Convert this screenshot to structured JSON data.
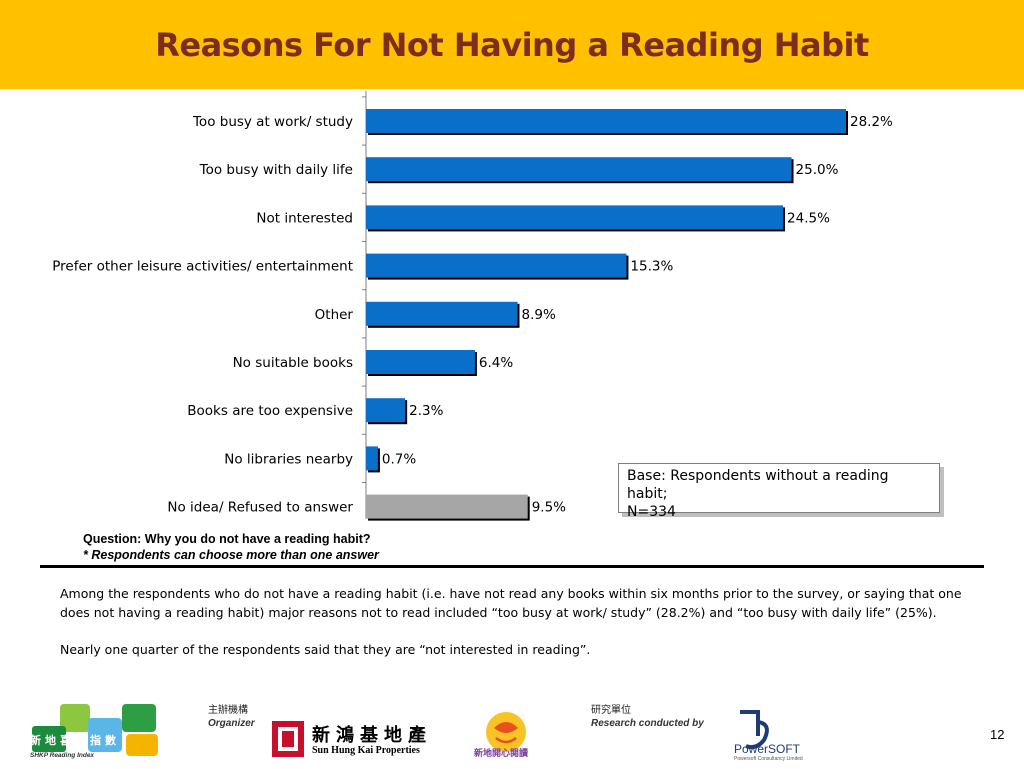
{
  "slide": {
    "title": "Reasons For Not Having a Reading Habit",
    "page_number": "12"
  },
  "chart_data": {
    "type": "bar",
    "orientation": "horizontal",
    "categories": [
      "Too busy at work/ study",
      "Too busy with daily life",
      "Not interested",
      "Prefer other leisure activities/ entertainment",
      "Other",
      "No suitable books",
      "Books are too expensive",
      "No libraries nearby",
      "No idea/ Refused to answer"
    ],
    "values": [
      28.2,
      25.0,
      24.5,
      15.3,
      8.9,
      6.4,
      2.3,
      0.7,
      9.5
    ],
    "value_labels": [
      "28.2%",
      "25.0%",
      "24.5%",
      "15.3%",
      "8.9%",
      "6.4%",
      "2.3%",
      "0.7%",
      "9.5%"
    ],
    "bar_colors": [
      "#0A6FC8",
      "#0A6FC8",
      "#0A6FC8",
      "#0A6FC8",
      "#0A6FC8",
      "#0A6FC8",
      "#0A6FC8",
      "#0A6FC8",
      "#A6A6A6"
    ],
    "unit": "%",
    "xlim": [
      0,
      30
    ],
    "grid": false,
    "legend": "none"
  },
  "base_note": {
    "line1": "Base: Respondents without a reading habit;",
    "line2": "N=334"
  },
  "question": {
    "text": "Question: Why you do not have a reading habit?",
    "note": "* Respondents can choose more than one answer"
  },
  "summary": {
    "paragraph1": "Among the respondents who do not have a reading habit (i.e. have not read any books within six months prior to the survey, or  saying that one does not having a reading habit) major reasons not to read included “too busy at work/ study” (28.2%) and “too busy with daily life” (25%).",
    "paragraph2": "Nearly one quarter of the respondents said that they are “not interested in reading”."
  },
  "footer": {
    "organizer_zh": "主辦機構",
    "organizer_en": "Organizer",
    "research_zh": "研究單位",
    "research_en": "Research conducted by",
    "logo_index_text": "新地喜閱指數",
    "logo_index_sub": "SHKP Reading Index",
    "logo_shkp_zh": "新鴻基地產",
    "logo_shkp_en": "Sun Hung Kai Properties",
    "logo_mascot_text": "新地開心閱讀",
    "logo_powersoft": "PowerSOFT",
    "logo_powersoft_sub": "Powersoft Consultancy Limited"
  },
  "colors": {
    "header_bg": "#FFC000",
    "title": "#7B2D1E",
    "bar": "#0A6FC8",
    "bar_other": "#A6A6A6"
  }
}
